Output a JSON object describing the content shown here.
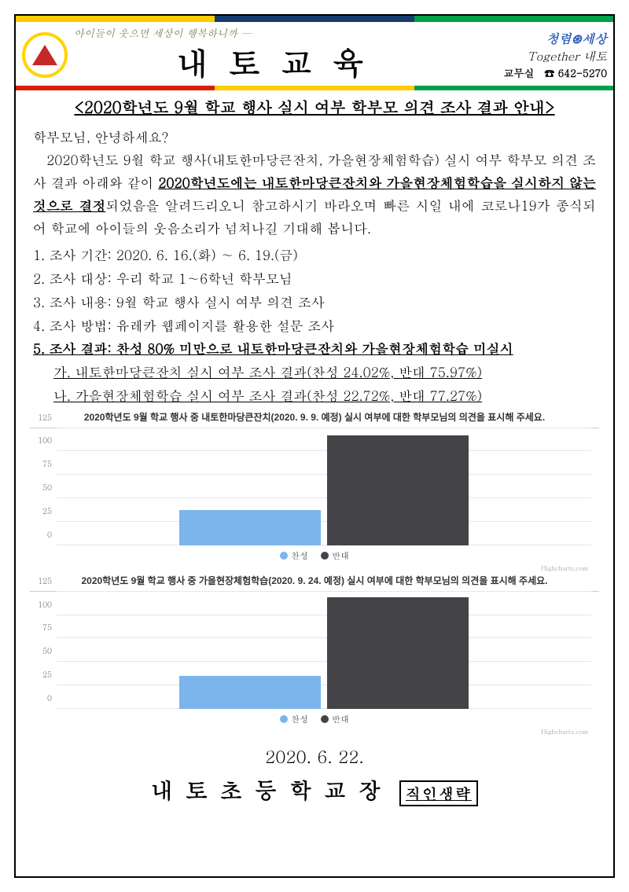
{
  "header": {
    "slogan": "아이들이 웃으면 세상이 행복하니까 —",
    "masthead": "내토교육",
    "right1": "청렴⊛세상",
    "right2": "Together 내토",
    "right3_label": "교무실",
    "right3_phone": "☎ 642-5270"
  },
  "title": "<2020학년도 9월 학교 행사 실시 여부 학부모 의견 조사 결과 안내>",
  "greeting": "학부모님, 안녕하세요?",
  "para_pre": "　2020학년도 9월 학교 행사(내토한마당큰잔치, 가을현장체험학습) 실시 여부 학부모 의견 조사 결과 아래와 같이 ",
  "para_u": "2020학년도에는 내토한마당큰잔치와 가을현장체험학습을 실시하지 않는 것으로 결정",
  "para_post": "되었음을 알려드리오니 참고하시기 바라오며 빠른 시일 내에 코로나19가 종식되어 학교에 아이들의 웃음소리가 넘쳐나길 기대해 봅니다.",
  "list": {
    "i1": "1. 조사 기간: 2020. 6. 16.(화) ∼ 6. 19.(금)",
    "i2": "2. 조사 대상: 우리 학교 1∼6학년 학부모님",
    "i3": "3. 조사 내용: 9월 학교 행사 실시 여부 의견 조사",
    "i4": "4. 조사 방법: 유레카 웹페이지를 활용한 설문 조사",
    "i5": "5. 조사 결과: 찬성 80% 미만으로 내토한마당큰잔치와 가을현장체험학습 미실시",
    "sa": "가. 내토한마당큰잔치 실시 여부 조사 결과(찬성 24.02%, 반대 75.97%)",
    "sb": "나. 가을현장체험학습 실시 여부 조사 결과(찬성 22.72%, 반대 77.27%)"
  },
  "chart1": {
    "type": "bar",
    "title": "2020학년도 9월 학교 행사 중 내토한마당큰잔치(2020. 9. 9. 예정) 실시 여부에 대한 학부모님의 의견을 표시해 주세요.",
    "categories": [
      "찬성",
      "반대"
    ],
    "values": [
      37,
      117
    ],
    "colors": [
      "#7cb5ec",
      "#434348"
    ],
    "ylim": [
      0,
      125
    ],
    "yticks": [
      0,
      25,
      50,
      75,
      100,
      125
    ],
    "credit": "Highcharts.com"
  },
  "chart2": {
    "type": "bar",
    "title": "2020학년도 9월 학교 행사 중 가을현장체험학습(2020. 9. 24. 예정) 실시 여부에 대한 학부모님의 의견을 표시해 주세요.",
    "categories": [
      "찬성",
      "반대"
    ],
    "values": [
      35,
      119
    ],
    "colors": [
      "#7cb5ec",
      "#434348"
    ],
    "ylim": [
      0,
      125
    ],
    "yticks": [
      0,
      25,
      50,
      75,
      100,
      125
    ],
    "credit": "Highcharts.com"
  },
  "footer": {
    "date": "2020. 6. 22.",
    "signer": "내토초등학교장",
    "stamp": "직인생략"
  }
}
